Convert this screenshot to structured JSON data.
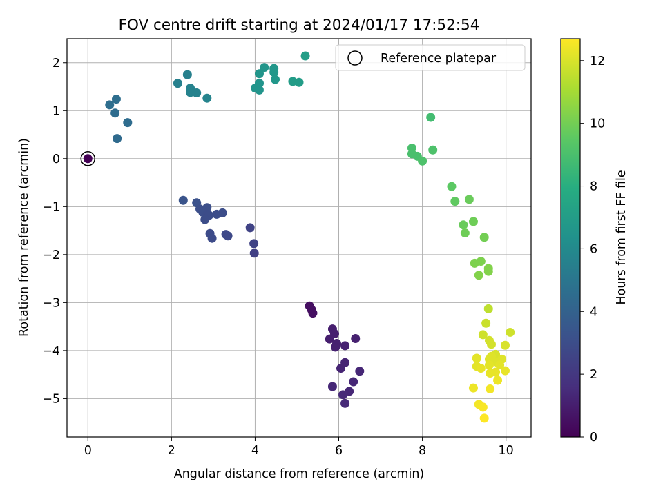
{
  "chart_data": {
    "type": "scatter",
    "title": "FOV centre drift starting at 2024/01/17 17:52:54",
    "xlabel": "Angular distance from reference (arcmin)",
    "ylabel": "Rotation from reference (arcmin)",
    "xlim": [
      -0.5,
      10.6
    ],
    "ylim": [
      -5.8,
      2.5
    ],
    "xticks": [
      0,
      2,
      4,
      6,
      8,
      10
    ],
    "yticks": [
      -5,
      -4,
      -3,
      -2,
      -1,
      0,
      1,
      2
    ],
    "grid": true,
    "legend": {
      "placement": "upper-right",
      "label": "Reference platepar"
    },
    "reference_point": {
      "x": 0,
      "y": 0
    },
    "colorbar": {
      "label": "Hours from first FF file",
      "colormap": "viridis",
      "min": 0,
      "max": 12.7,
      "ticks": [
        0,
        2,
        4,
        6,
        8,
        10,
        12
      ]
    },
    "points": [
      {
        "x": 0.0,
        "y": 0.0,
        "c": 0.0
      },
      {
        "x": 5.3,
        "y": -3.07,
        "c": 0.5
      },
      {
        "x": 5.35,
        "y": -3.15,
        "c": 0.5
      },
      {
        "x": 5.38,
        "y": -3.22,
        "c": 0.5
      },
      {
        "x": 5.85,
        "y": -3.55,
        "c": 1.0
      },
      {
        "x": 5.9,
        "y": -3.65,
        "c": 1.0
      },
      {
        "x": 5.78,
        "y": -3.76,
        "c": 1.0
      },
      {
        "x": 5.95,
        "y": -3.85,
        "c": 1.1
      },
      {
        "x": 5.92,
        "y": -3.93,
        "c": 1.1
      },
      {
        "x": 6.15,
        "y": -3.9,
        "c": 1.1
      },
      {
        "x": 6.4,
        "y": -3.75,
        "c": 1.1
      },
      {
        "x": 6.05,
        "y": -4.37,
        "c": 1.2
      },
      {
        "x": 6.15,
        "y": -4.25,
        "c": 1.2
      },
      {
        "x": 6.5,
        "y": -4.43,
        "c": 1.3
      },
      {
        "x": 5.85,
        "y": -4.75,
        "c": 1.3
      },
      {
        "x": 6.35,
        "y": -4.65,
        "c": 1.3
      },
      {
        "x": 6.25,
        "y": -4.85,
        "c": 1.3
      },
      {
        "x": 6.1,
        "y": -4.92,
        "c": 1.4
      },
      {
        "x": 6.15,
        "y": -5.1,
        "c": 1.4
      },
      {
        "x": 3.88,
        "y": -1.44,
        "c": 2.5
      },
      {
        "x": 3.97,
        "y": -1.77,
        "c": 2.5
      },
      {
        "x": 3.98,
        "y": -1.97,
        "c": 2.4
      },
      {
        "x": 3.3,
        "y": -1.58,
        "c": 2.8
      },
      {
        "x": 3.35,
        "y": -1.61,
        "c": 2.8
      },
      {
        "x": 2.92,
        "y": -1.56,
        "c": 2.9
      },
      {
        "x": 2.97,
        "y": -1.66,
        "c": 2.9
      },
      {
        "x": 2.28,
        "y": -0.87,
        "c": 3.3
      },
      {
        "x": 2.6,
        "y": -0.92,
        "c": 3.2
      },
      {
        "x": 2.68,
        "y": -1.05,
        "c": 3.1
      },
      {
        "x": 2.85,
        "y": -1.02,
        "c": 3.1
      },
      {
        "x": 2.75,
        "y": -1.12,
        "c": 3.1
      },
      {
        "x": 2.85,
        "y": -1.16,
        "c": 3.0
      },
      {
        "x": 2.9,
        "y": -1.18,
        "c": 3.0
      },
      {
        "x": 2.8,
        "y": -1.27,
        "c": 3.0
      },
      {
        "x": 3.08,
        "y": -1.16,
        "c": 3.0
      },
      {
        "x": 3.22,
        "y": -1.13,
        "c": 3.0
      },
      {
        "x": 0.7,
        "y": 0.42,
        "c": 4.4
      },
      {
        "x": 0.95,
        "y": 0.75,
        "c": 4.5
      },
      {
        "x": 0.65,
        "y": 0.95,
        "c": 4.5
      },
      {
        "x": 0.52,
        "y": 1.12,
        "c": 4.6
      },
      {
        "x": 0.68,
        "y": 1.24,
        "c": 4.6
      },
      {
        "x": 2.15,
        "y": 1.57,
        "c": 5.5
      },
      {
        "x": 2.38,
        "y": 1.75,
        "c": 5.5
      },
      {
        "x": 2.45,
        "y": 1.47,
        "c": 5.6
      },
      {
        "x": 2.45,
        "y": 1.38,
        "c": 5.6
      },
      {
        "x": 2.6,
        "y": 1.37,
        "c": 5.6
      },
      {
        "x": 2.85,
        "y": 1.26,
        "c": 5.7
      },
      {
        "x": 4.0,
        "y": 1.47,
        "c": 6.5
      },
      {
        "x": 4.1,
        "y": 1.43,
        "c": 6.5
      },
      {
        "x": 4.1,
        "y": 1.57,
        "c": 6.5
      },
      {
        "x": 4.1,
        "y": 1.77,
        "c": 6.6
      },
      {
        "x": 4.22,
        "y": 1.9,
        "c": 6.6
      },
      {
        "x": 4.45,
        "y": 1.88,
        "c": 6.7
      },
      {
        "x": 4.45,
        "y": 1.8,
        "c": 6.7
      },
      {
        "x": 4.48,
        "y": 1.65,
        "c": 6.7
      },
      {
        "x": 4.9,
        "y": 1.61,
        "c": 7.0
      },
      {
        "x": 5.05,
        "y": 1.59,
        "c": 7.0
      },
      {
        "x": 5.2,
        "y": 2.14,
        "c": 7.1
      },
      {
        "x": 7.75,
        "y": 0.22,
        "c": 9.0
      },
      {
        "x": 7.75,
        "y": 0.1,
        "c": 9.0
      },
      {
        "x": 7.88,
        "y": 0.05,
        "c": 9.0
      },
      {
        "x": 8.0,
        "y": -0.05,
        "c": 9.1
      },
      {
        "x": 8.2,
        "y": 0.86,
        "c": 8.8
      },
      {
        "x": 8.25,
        "y": 0.18,
        "c": 9.1
      },
      {
        "x": 8.7,
        "y": -0.58,
        "c": 9.5
      },
      {
        "x": 8.78,
        "y": -0.89,
        "c": 9.6
      },
      {
        "x": 9.12,
        "y": -0.85,
        "c": 9.8
      },
      {
        "x": 8.98,
        "y": -1.38,
        "c": 9.8
      },
      {
        "x": 9.02,
        "y": -1.55,
        "c": 9.9
      },
      {
        "x": 9.22,
        "y": -1.31,
        "c": 9.9
      },
      {
        "x": 9.48,
        "y": -1.64,
        "c": 10.0
      },
      {
        "x": 9.25,
        "y": -2.18,
        "c": 10.2
      },
      {
        "x": 9.4,
        "y": -2.14,
        "c": 10.2
      },
      {
        "x": 9.58,
        "y": -2.29,
        "c": 10.3
      },
      {
        "x": 9.58,
        "y": -2.35,
        "c": 10.3
      },
      {
        "x": 9.35,
        "y": -2.43,
        "c": 10.3
      },
      {
        "x": 9.58,
        "y": -3.13,
        "c": 11.5
      },
      {
        "x": 9.52,
        "y": -3.43,
        "c": 11.7
      },
      {
        "x": 9.45,
        "y": -3.67,
        "c": 11.8
      },
      {
        "x": 9.6,
        "y": -3.79,
        "c": 11.9
      },
      {
        "x": 9.65,
        "y": -3.87,
        "c": 11.9
      },
      {
        "x": 10.1,
        "y": -3.62,
        "c": 11.8
      },
      {
        "x": 9.98,
        "y": -3.89,
        "c": 12.0
      },
      {
        "x": 9.75,
        "y": -4.08,
        "c": 12.0
      },
      {
        "x": 9.65,
        "y": -4.12,
        "c": 12.1
      },
      {
        "x": 9.6,
        "y": -4.18,
        "c": 12.1
      },
      {
        "x": 9.7,
        "y": -4.22,
        "c": 12.1
      },
      {
        "x": 9.8,
        "y": -4.25,
        "c": 12.1
      },
      {
        "x": 9.9,
        "y": -4.18,
        "c": 12.1
      },
      {
        "x": 9.85,
        "y": -4.3,
        "c": 12.2
      },
      {
        "x": 9.6,
        "y": -4.3,
        "c": 12.2
      },
      {
        "x": 9.3,
        "y": -4.16,
        "c": 12.2
      },
      {
        "x": 9.3,
        "y": -4.33,
        "c": 12.2
      },
      {
        "x": 9.4,
        "y": -4.37,
        "c": 12.3
      },
      {
        "x": 9.62,
        "y": -4.47,
        "c": 12.3
      },
      {
        "x": 9.75,
        "y": -4.45,
        "c": 12.3
      },
      {
        "x": 9.98,
        "y": -4.42,
        "c": 12.3
      },
      {
        "x": 9.8,
        "y": -4.62,
        "c": 12.4
      },
      {
        "x": 9.22,
        "y": -4.78,
        "c": 12.4
      },
      {
        "x": 9.62,
        "y": -4.8,
        "c": 12.5
      },
      {
        "x": 9.35,
        "y": -5.12,
        "c": 12.5
      },
      {
        "x": 9.45,
        "y": -5.18,
        "c": 12.6
      },
      {
        "x": 9.48,
        "y": -5.41,
        "c": 12.7
      }
    ]
  }
}
